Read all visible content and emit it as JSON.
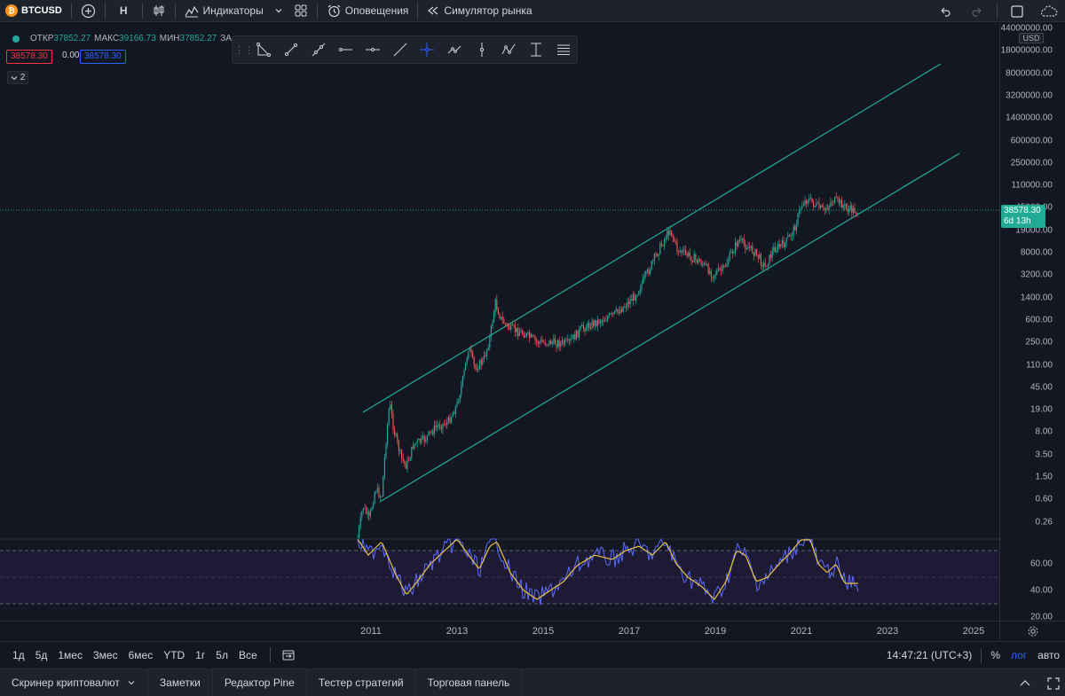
{
  "topbar": {
    "coin_glyph": "₿",
    "symbol": "BTCUSD",
    "interval": "Н",
    "indicators_label": "Индикаторы",
    "alerts_label": "Оповещения",
    "replay_label": "Симулятор рынка"
  },
  "legend": {
    "open_key": "ОТКР",
    "open_val": "37852.27",
    "high_key": "МАКС",
    "high_val": "39166.73",
    "low_key": "МИН",
    "low_val": "37852.27",
    "close_key": "ЗА",
    "sell_price": "38578.30",
    "spread": "0.00",
    "buy_price": "38578.30",
    "collapsed_count": "2"
  },
  "price_axis": {
    "currency": "USD",
    "labels": [
      "44000000.00",
      "18000000.00",
      "8000000.00",
      "3200000.00",
      "1400000.00",
      "600000.00",
      "250000.00",
      "110000.00",
      "45000.00",
      "19000.00",
      "8000.00",
      "3200.00",
      "1400.00",
      "600.00",
      "250.00",
      "110.00",
      "45.00",
      "19.00",
      "8.00",
      "3.50",
      "1.50",
      "0.60",
      "0.26"
    ],
    "last_price": "38578.30",
    "countdown": "6d 13h"
  },
  "rsi_axis": {
    "labels": [
      "60.00",
      "40.00",
      "20.00"
    ]
  },
  "time_axis": {
    "years": [
      "2011",
      "2013",
      "2015",
      "2017",
      "2019",
      "2021",
      "2023",
      "2025"
    ]
  },
  "rangebar": {
    "ranges": [
      "1д",
      "5д",
      "1мес",
      "3мес",
      "6мес",
      "YTD",
      "1г",
      "5л",
      "Все"
    ],
    "clock": "14:47:21 (UTC+3)",
    "percent": "%",
    "log": "лог",
    "auto": "авто"
  },
  "bottom_tabs": [
    "Скринер криптовалют",
    "Заметки",
    "Редактор Pine",
    "Тестер стратегий",
    "Торговая панель"
  ],
  "colors": {
    "background": "#131722",
    "up": "#26a69a",
    "down": "#ef5350",
    "channel": "#22ab94",
    "rsi_line": "#5b6bff",
    "rsi_ma": "#e8c340",
    "accent": "#2962ff"
  }
}
